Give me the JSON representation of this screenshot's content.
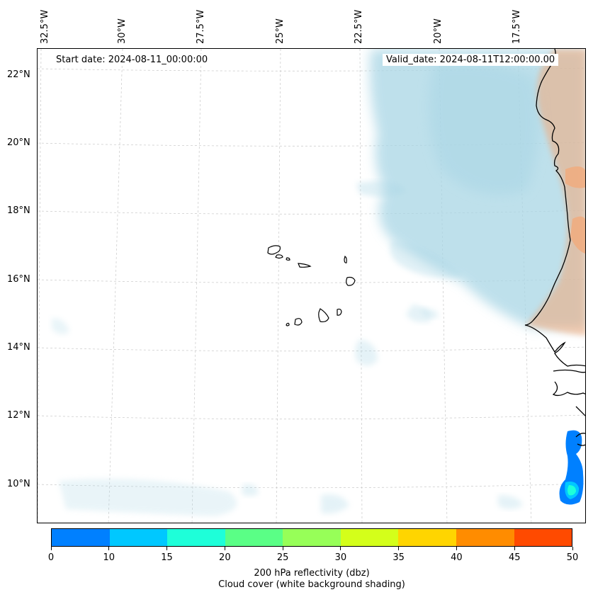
{
  "header": {
    "start_date": "Start date: 2024-08-11_00:00:00",
    "valid_date": "Valid_date: 2024-08-11T12:00:00.00"
  },
  "axes": {
    "longitude_labels": [
      "32.5°W",
      "30°W",
      "27.5°W",
      "25°W",
      "22.5°W",
      "20°W",
      "17.5°W"
    ],
    "latitude_labels": [
      "22°N",
      "20°N",
      "18°N",
      "16°N",
      "14°N",
      "12°N",
      "10°N"
    ]
  },
  "colorbar": {
    "ticks": [
      "0",
      "10",
      "15",
      "20",
      "25",
      "30",
      "35",
      "40",
      "45",
      "50"
    ],
    "colors": [
      "#0080ff",
      "#00c8ff",
      "#1effd9",
      "#5aff86",
      "#97ff58",
      "#d4ff1a",
      "#ffd500",
      "#ff8c00",
      "#ff4a00"
    ],
    "label_line1": "200 hPa reflectivity (dbz)",
    "label_line2": "Cloud cover (white background shading)"
  },
  "map_layers": {
    "cloud_color": "#a9d6e5",
    "land_color": "#f3a878",
    "coastline_color": "#000000",
    "gridline_color": "#c8c8c8",
    "gridlines": true
  }
}
